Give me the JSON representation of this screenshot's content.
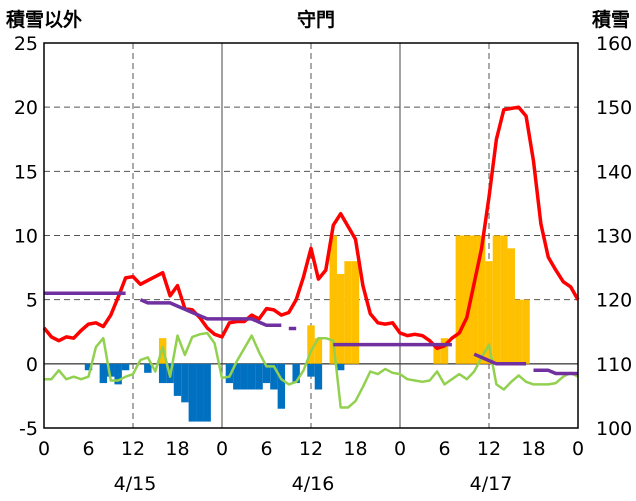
{
  "chart_data": {
    "type": "bar+line",
    "title": "守門",
    "left_axis_label": "積雪以外",
    "right_axis_label": "積雪",
    "left_ylim": [
      -5,
      25
    ],
    "left_ticks": [
      "-5",
      "0",
      "5",
      "10",
      "15",
      "20",
      "25"
    ],
    "right_ylim": [
      100,
      160
    ],
    "right_ticks": [
      "100",
      "110",
      "120",
      "130",
      "140",
      "150",
      "160"
    ],
    "x_hour_range": [
      0,
      72
    ],
    "x_tick_labels": [
      "0",
      "6",
      "12",
      "18",
      "0",
      "6",
      "12",
      "18",
      "0",
      "6",
      "12",
      "18",
      "0"
    ],
    "date_labels": [
      "4/15",
      "4/16",
      "4/17"
    ],
    "grid": true,
    "colors": {
      "red_line": "#ff0000",
      "green_line": "#92d050",
      "purple_line": "#7030a0",
      "yellow_bars": "#ffc000",
      "blue_bars": "#0070c0"
    },
    "series": [
      {
        "type": "line",
        "axis": "left",
        "color": "#ff0000",
        "hours": [
          0,
          1,
          2,
          3,
          4,
          5,
          6,
          7,
          8,
          9,
          10,
          11,
          12,
          13,
          14,
          15,
          16,
          17,
          18,
          19,
          20,
          21,
          22,
          23,
          24,
          25,
          26,
          27,
          28,
          29,
          30,
          31,
          32,
          33,
          34,
          35,
          36,
          37,
          38,
          39,
          40,
          41,
          42,
          43,
          44,
          45,
          46,
          47,
          48,
          49,
          50,
          51,
          52,
          53,
          54,
          55,
          56,
          57,
          58,
          59,
          60,
          61,
          62,
          63,
          64,
          65,
          66,
          67,
          68,
          69,
          70,
          71,
          72
        ],
        "values": [
          2.8,
          2.1,
          1.8,
          2.1,
          2.0,
          2.6,
          3.1,
          3.2,
          2.9,
          3.8,
          5.2,
          6.7,
          6.8,
          6.2,
          6.5,
          6.8,
          7.1,
          5.3,
          6.1,
          4.3,
          4.2,
          3.6,
          2.8,
          2.3,
          2.1,
          3.2,
          3.3,
          3.3,
          3.8,
          3.5,
          4.3,
          4.2,
          3.8,
          4.0,
          5.0,
          6.8,
          9.0,
          6.6,
          7.3,
          10.8,
          11.7,
          10.7,
          9.7,
          6.1,
          3.9,
          3.2,
          3.1,
          3.2,
          2.4,
          2.2,
          2.3,
          2.2,
          1.8,
          1.2,
          1.4,
          2.0,
          2.4,
          3.6,
          6.3,
          9.0,
          13.0,
          17.5,
          19.8,
          19.9,
          20.0,
          19.3,
          15.8,
          10.9,
          8.3,
          7.3,
          6.4,
          6.0,
          5.0
        ]
      },
      {
        "type": "line",
        "axis": "left",
        "color": "#92d050",
        "hours": [
          0,
          1,
          2,
          3,
          4,
          5,
          6,
          7,
          8,
          9,
          10,
          11,
          12,
          13,
          14,
          15,
          16,
          17,
          18,
          19,
          20,
          21,
          22,
          23,
          24,
          25,
          26,
          27,
          28,
          29,
          30,
          31,
          32,
          33,
          34,
          35,
          36,
          37,
          38,
          39,
          40,
          41,
          42,
          43,
          44,
          45,
          46,
          47,
          48,
          49,
          50,
          51,
          52,
          53,
          54,
          55,
          56,
          57,
          58,
          59,
          60,
          61,
          62,
          63,
          64,
          65,
          66,
          67,
          68,
          69,
          70,
          71,
          72
        ],
        "values": [
          -1.2,
          -1.2,
          -0.5,
          -1.2,
          -1.0,
          -1.2,
          -1.0,
          1.3,
          2.0,
          -1.3,
          -1.3,
          -1.0,
          -0.8,
          0.3,
          0.5,
          -0.6,
          1.3,
          -1.0,
          2.2,
          0.7,
          2.1,
          2.3,
          2.4,
          1.6,
          -1.1,
          -1.0,
          0.2,
          1.2,
          2.2,
          0.9,
          -0.2,
          -0.2,
          -1.2,
          -1.6,
          -1.4,
          -0.5,
          1.0,
          2.0,
          2.0,
          1.8,
          -3.4,
          -3.4,
          -2.9,
          -1.8,
          -0.6,
          -0.8,
          -0.4,
          -0.7,
          -0.8,
          -1.2,
          -1.3,
          -1.4,
          -1.3,
          -0.6,
          -1.6,
          -1.2,
          -0.8,
          -1.2,
          -0.6,
          0.5,
          1.5,
          -1.6,
          -2.0,
          -1.4,
          -0.9,
          -1.4,
          -1.6,
          -1.6,
          -1.6,
          -1.5,
          -1.0,
          -0.7,
          -1.0
        ]
      },
      {
        "type": "line",
        "axis": "right",
        "color": "#7030a0",
        "segments": [
          {
            "hours": [
              0,
              11
            ],
            "values": [
              121,
              121
            ]
          },
          {
            "hours": [
              13,
              14,
              17,
              18,
              19,
              20,
              21,
              22,
              28,
              29,
              30,
              32
            ],
            "values": [
              120,
              119.5,
              119.5,
              119,
              118.5,
              118,
              117.5,
              117,
              117,
              116.5,
              116,
              116
            ]
          },
          {
            "hours": [
              33,
              34
            ],
            "values": [
              115.5,
              115.5
            ]
          },
          {
            "hours": [
              39,
              55
            ],
            "values": [
              113,
              113
            ]
          },
          {
            "hours": [
              58,
              60,
              61,
              65
            ],
            "values": [
              111.5,
              110.5,
              110,
              110
            ]
          },
          {
            "hours": [
              66,
              68,
              69,
              72
            ],
            "values": [
              109,
              109,
              108.5,
              108.5
            ]
          }
        ]
      },
      {
        "type": "bar",
        "axis": "left",
        "color": "#ffc000",
        "hours": [
          16,
          36,
          37,
          39,
          40,
          41,
          42,
          53,
          54,
          56,
          57,
          58,
          59,
          60,
          61,
          62,
          63,
          64,
          65
        ],
        "values": [
          2.0,
          3.0,
          2.0,
          10.0,
          7.0,
          8.0,
          8.0,
          1.5,
          2.0,
          10.0,
          10.0,
          10.0,
          10.0,
          8.0,
          10.0,
          10.0,
          9.0,
          5.0,
          5.0
        ]
      },
      {
        "type": "bar",
        "axis": "left",
        "color": "#0070c0",
        "hours": [
          6,
          8,
          9,
          10,
          11,
          14,
          16,
          17,
          18,
          19,
          20,
          21,
          22,
          25,
          26,
          27,
          28,
          29,
          30,
          31,
          32,
          34,
          36,
          37,
          40
        ],
        "values": [
          -0.5,
          -1.5,
          -1.0,
          -1.6,
          -0.5,
          -0.7,
          -1.5,
          -1.5,
          -2.5,
          -3.0,
          -4.5,
          -4.5,
          -4.5,
          -1.5,
          -2.0,
          -2.0,
          -2.0,
          -2.0,
          -1.5,
          -2.0,
          -3.5,
          -1.5,
          -1.0,
          -2.0,
          -0.5
        ]
      }
    ]
  }
}
